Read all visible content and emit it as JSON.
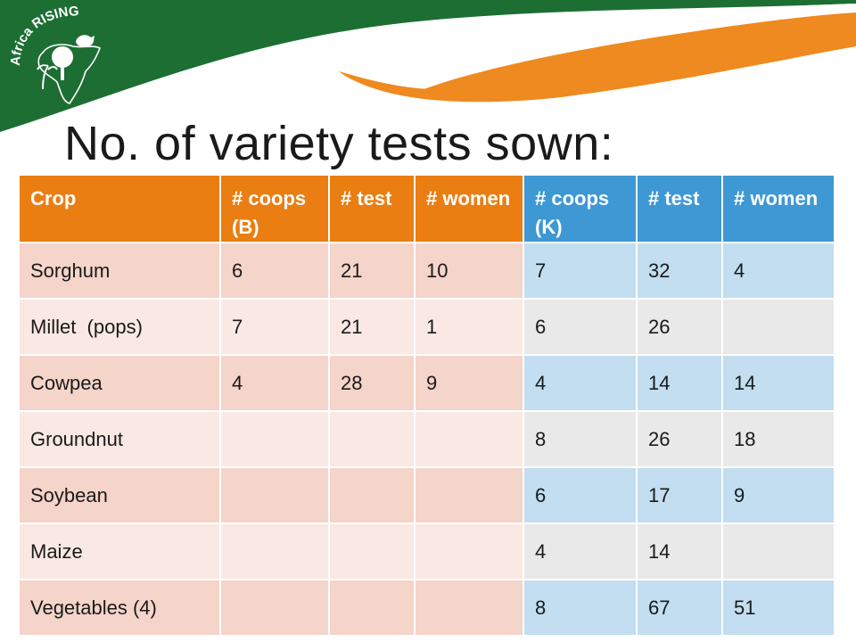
{
  "slide": {
    "title": "No. of variety tests sown:",
    "logo_text": "Africa RISING"
  },
  "colors": {
    "banner_green": "#1d6e33",
    "banner_orange": "#ee8a1f",
    "header_b": "#ea7e12",
    "header_k": "#3e98d3",
    "row_b_dark": "#f5d4c9",
    "row_b_light": "#f9e8e3",
    "row_k_dark": "#c2def0",
    "row_k_light": "#e9e9e9"
  },
  "table": {
    "headers": [
      "Crop",
      "# coops (B)",
      "# test",
      "# women",
      "# coops (K)",
      "# test",
      "# women"
    ],
    "rows": [
      [
        "Sorghum",
        "6",
        "21",
        "10",
        "7",
        "32",
        "4"
      ],
      [
        "Millet  (pops)",
        "7",
        "21",
        "1",
        "6",
        "26",
        ""
      ],
      [
        "Cowpea",
        "4",
        "28",
        "9",
        "4",
        "14",
        "14"
      ],
      [
        "Groundnut",
        "",
        "",
        "",
        "8",
        "26",
        "18"
      ],
      [
        "Soybean",
        "",
        "",
        "",
        "6",
        "17",
        "9"
      ],
      [
        "Maize",
        "",
        "",
        "",
        "4",
        "14",
        ""
      ],
      [
        "Vegetables (4)",
        "",
        "",
        "",
        "8",
        "67",
        "51"
      ]
    ]
  }
}
